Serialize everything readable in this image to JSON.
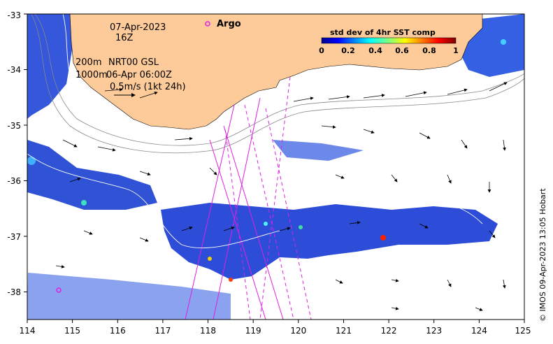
{
  "map": {
    "date": "07-Apr-2023",
    "hour": "16Z",
    "depth_200": "200m",
    "depth_1000": "1000m",
    "current_source": "NRT00 GSL",
    "current_time": "06-Apr 06:00Z",
    "scale_arrow_label": "0.5m/s (1kt 24h)",
    "argo_label": "Argo",
    "credit": "© IMOS 09-Apr-2023 13:05 Hobart",
    "land_color": "#fdcb9a",
    "argo_color": "#e020e0",
    "lon_range": [
      114,
      125
    ],
    "lat_range": [
      -38.5,
      -33
    ],
    "lon_ticks": [
      "114",
      "115",
      "116",
      "117",
      "118",
      "119",
      "120",
      "121",
      "122",
      "123",
      "124",
      "125"
    ],
    "lat_ticks": [
      "-33",
      "-34",
      "-35",
      "-36",
      "-37",
      "-38"
    ]
  },
  "legend": {
    "title": "std dev of 4hr SST comp",
    "ticks": [
      "0",
      "0.2",
      "0.4",
      "0.6",
      "0.8",
      "1"
    ]
  }
}
